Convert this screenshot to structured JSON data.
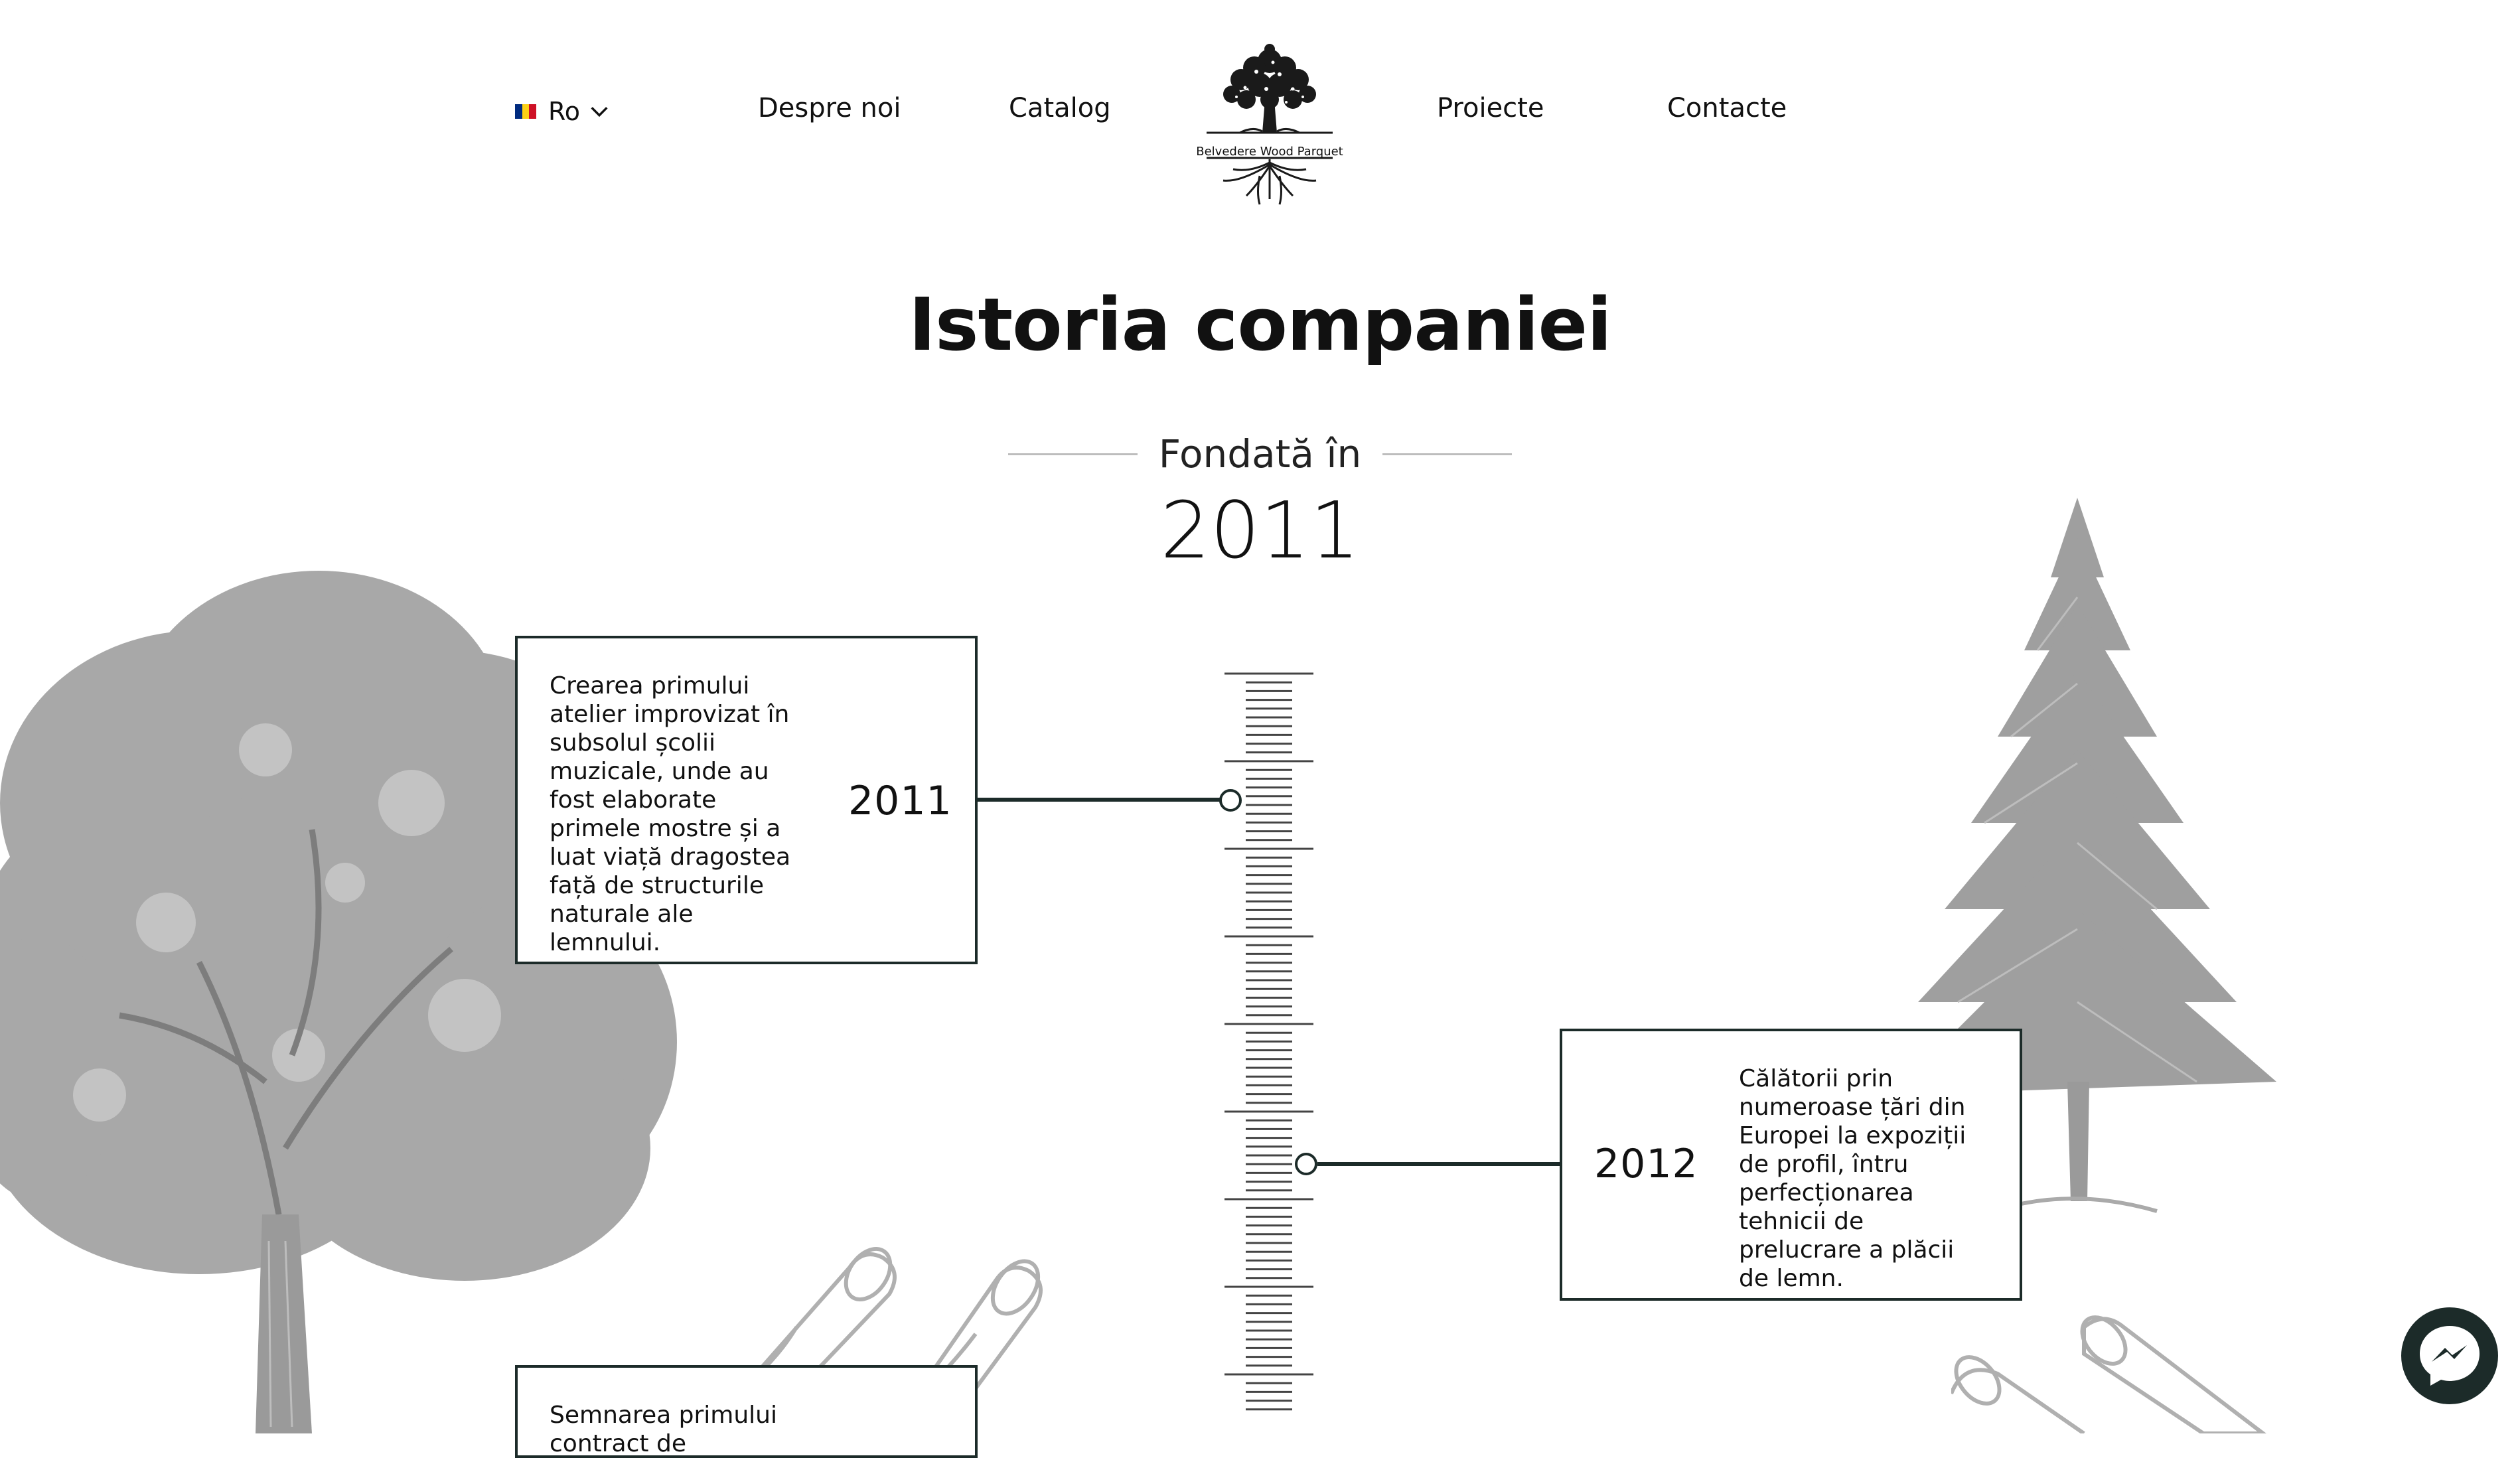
{
  "nav": {
    "language": {
      "label": "Ro",
      "flag_colors": [
        "#002B7F",
        "#FCD116",
        "#CE1126"
      ]
    },
    "links": [
      "Despre noi",
      "Catalog",
      "Proiecte",
      "Contacte"
    ],
    "logo_text": "Belvedere Wood Parquet"
  },
  "hero": {
    "title": "Istoria companiei",
    "founded_label": "Fondată în",
    "founded_year": "2011"
  },
  "timeline": [
    {
      "year": "2011",
      "text": "Crearea primului atelier improvizat în subsolul școlii muzicale, unde au fost elaborate primele mostre și a luat viață dragostea față de structurile naturale ale lemnului."
    },
    {
      "year": "2012",
      "text": "Călătorii prin numeroase țări din Europei la expoziții de profil, întru perfecționarea tehnicii de prelucrare a plăcii de lemn."
    },
    {
      "year": "",
      "text": "Semnarea primului contract de"
    }
  ],
  "icons": {
    "language_toggle": "chevron-down-icon",
    "logo": "tree-logo-icon",
    "chat": "messenger-icon"
  },
  "colors": {
    "text": "#111111",
    "accent": "#1c2b29",
    "illustration": "#9a9a9a",
    "divider": "#bdbdbd",
    "background": "#ffffff"
  }
}
